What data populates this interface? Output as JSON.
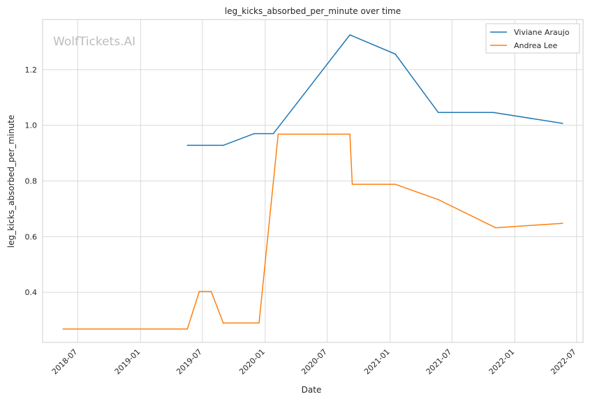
{
  "chart_data": {
    "type": "line",
    "title": "leg_kicks_absorbed_per_minute over time",
    "xlabel": "Date",
    "ylabel": "leg_kicks_absorbed_per_minute",
    "xlim": [
      "2018-03-20",
      "2022-07-20"
    ],
    "ylim": [
      0.22,
      1.38
    ],
    "x_ticks": [
      "2018-07",
      "2019-01",
      "2019-07",
      "2020-01",
      "2020-07",
      "2021-01",
      "2021-07",
      "2022-01",
      "2022-07"
    ],
    "y_ticks": [
      "0.4",
      "0.6",
      "0.8",
      "1.0",
      "1.2"
    ],
    "grid": true,
    "legend_position": "top-right",
    "watermark": "WolfTickets.AI",
    "series": [
      {
        "name": "Viviane Araujo",
        "color": "#1f77b4",
        "points": [
          {
            "x": "2019-05-18",
            "y": 0.928
          },
          {
            "x": "2019-08-31",
            "y": 0.928
          },
          {
            "x": "2019-11-30",
            "y": 0.97
          },
          {
            "x": "2020-01-25",
            "y": 0.97
          },
          {
            "x": "2020-09-05",
            "y": 1.325
          },
          {
            "x": "2021-01-16",
            "y": 1.256
          },
          {
            "x": "2021-05-22",
            "y": 1.046
          },
          {
            "x": "2021-10-30",
            "y": 1.046
          },
          {
            "x": "2022-05-21",
            "y": 1.007
          }
        ]
      },
      {
        "name": "Andrea Lee",
        "color": "#ff7f0e",
        "points": [
          {
            "x": "2018-05-19",
            "y": 0.268
          },
          {
            "x": "2019-05-18",
            "y": 0.268
          },
          {
            "x": "2019-06-22",
            "y": 0.403
          },
          {
            "x": "2019-07-27",
            "y": 0.403
          },
          {
            "x": "2019-08-31",
            "y": 0.29
          },
          {
            "x": "2019-12-14",
            "y": 0.29
          },
          {
            "x": "2020-02-08",
            "y": 0.968
          },
          {
            "x": "2020-09-05",
            "y": 0.968
          },
          {
            "x": "2020-09-12",
            "y": 0.788
          },
          {
            "x": "2021-01-16",
            "y": 0.788
          },
          {
            "x": "2021-05-22",
            "y": 0.733
          },
          {
            "x": "2021-11-06",
            "y": 0.632
          },
          {
            "x": "2022-05-21",
            "y": 0.648
          }
        ]
      }
    ]
  }
}
